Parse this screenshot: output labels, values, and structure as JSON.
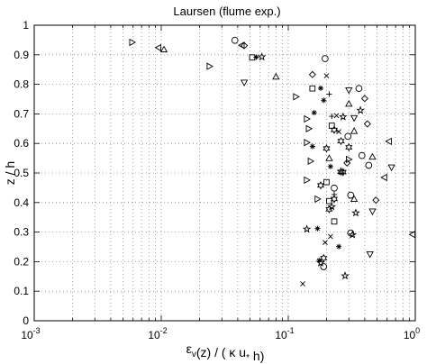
{
  "chart_data": {
    "type": "scatter",
    "title": "Laursen (flume exp.)",
    "xlabel": "ε_v(z) / ( κ u_* h)",
    "ylabel": "z / h",
    "xscale": "log",
    "xlim": [
      0.001,
      1
    ],
    "ylim": [
      0,
      1
    ],
    "grid": true,
    "x_tick_labels": [
      {
        "base": "10",
        "exp": "-3"
      },
      {
        "base": "10",
        "exp": "-2"
      },
      {
        "base": "10",
        "exp": "-1"
      },
      {
        "base": "10",
        "exp": "0"
      }
    ],
    "y_ticks": [
      "0",
      "0.1",
      "0.2",
      "0.3",
      "0.4",
      "0.5",
      "0.6",
      "0.7",
      "0.8",
      "0.9",
      "1"
    ],
    "series": [
      {
        "marker": "triangle-right",
        "points": [
          [
            0.0059,
            0.942
          ],
          [
            0.024,
            0.861
          ],
          [
            0.115,
            0.758
          ],
          [
            0.14,
            0.683
          ],
          [
            0.145,
            0.65
          ],
          [
            0.14,
            0.603
          ],
          [
            0.15,
            0.54
          ],
          [
            0.14,
            0.476
          ],
          [
            0.17,
            0.412
          ],
          [
            0.3,
            0.546
          ]
        ]
      },
      {
        "marker": "triangle-left",
        "points": [
          [
            0.0095,
            0.924
          ],
          [
            0.043,
            0.932
          ],
          [
            0.62,
            0.607
          ],
          [
            0.57,
            0.485
          ],
          [
            0.95,
            0.292
          ]
        ]
      },
      {
        "marker": "triangle-up",
        "points": [
          [
            0.0105,
            0.918
          ],
          [
            0.08,
            0.826
          ],
          [
            0.3,
            0.734
          ],
          [
            0.33,
            0.642
          ],
          [
            0.46,
            0.555
          ],
          [
            0.21,
            0.55
          ],
          [
            0.33,
            0.412
          ]
        ]
      },
      {
        "marker": "triangle-down",
        "points": [
          [
            0.045,
            0.806
          ],
          [
            0.3,
            0.78
          ],
          [
            0.33,
            0.686
          ],
          [
            0.65,
            0.519
          ],
          [
            0.46,
            0.37
          ],
          [
            0.44,
            0.225
          ]
        ]
      },
      {
        "marker": "circle",
        "points": [
          [
            0.038,
            0.949
          ],
          [
            0.195,
            0.887
          ],
          [
            0.36,
            0.786
          ],
          [
            0.295,
            0.624
          ],
          [
            0.38,
            0.559
          ],
          [
            0.43,
            0.526
          ],
          [
            0.23,
            0.449
          ],
          [
            0.31,
            0.425
          ],
          [
            0.31,
            0.297
          ],
          [
            0.19,
            0.183
          ]
        ]
      },
      {
        "marker": "diamond",
        "points": [
          [
            0.045,
            0.931
          ],
          [
            0.155,
            0.833
          ],
          [
            0.4,
            0.752
          ],
          [
            0.42,
            0.666
          ],
          [
            0.29,
            0.534
          ],
          [
            0.49,
            0.408
          ]
        ]
      },
      {
        "marker": "square",
        "points": [
          [
            0.052,
            0.891
          ],
          [
            0.155,
            0.786
          ],
          [
            0.22,
            0.66
          ],
          [
            0.2,
            0.469
          ],
          [
            0.21,
            0.405
          ],
          [
            0.23,
            0.336
          ]
        ]
      },
      {
        "marker": "pentagram",
        "points": [
          [
            0.062,
            0.893
          ],
          [
            0.37,
            0.712
          ],
          [
            0.27,
            0.69
          ],
          [
            0.26,
            0.505
          ],
          [
            0.22,
            0.386
          ],
          [
            0.34,
            0.365
          ],
          [
            0.14,
            0.31
          ],
          [
            0.32,
            0.291
          ],
          [
            0.18,
            0.196
          ],
          [
            0.28,
            0.152
          ]
        ]
      },
      {
        "marker": "hexagram",
        "points": [
          [
            0.23,
            0.646
          ],
          [
            0.26,
            0.608
          ],
          [
            0.3,
            0.587
          ],
          [
            0.2,
            0.583
          ],
          [
            0.26,
            0.504
          ],
          [
            0.27,
            0.503
          ],
          [
            0.18,
            0.458
          ],
          [
            0.23,
            0.412
          ],
          [
            0.21,
            0.377
          ],
          [
            0.19,
            0.212
          ]
        ]
      },
      {
        "marker": "asterisk",
        "points": [
          [
            0.056,
            0.892
          ],
          [
            0.18,
            0.787
          ],
          [
            0.19,
            0.746
          ],
          [
            0.16,
            0.704
          ],
          [
            0.155,
            0.59
          ],
          [
            0.215,
            0.522
          ],
          [
            0.17,
            0.312
          ],
          [
            0.25,
            0.251
          ],
          [
            0.175,
            0.204
          ]
        ]
      },
      {
        "marker": "x",
        "points": [
          [
            0.2,
            0.829
          ],
          [
            0.24,
            0.694
          ],
          [
            0.25,
            0.64
          ],
          [
            0.13,
            0.125
          ],
          [
            0.195,
            0.265
          ],
          [
            0.215,
            0.285
          ]
        ]
      },
      {
        "marker": "plus",
        "points": [
          [
            0.21,
            0.767
          ],
          [
            0.22,
            0.692
          ],
          [
            0.23,
            0.427
          ]
        ]
      }
    ]
  }
}
